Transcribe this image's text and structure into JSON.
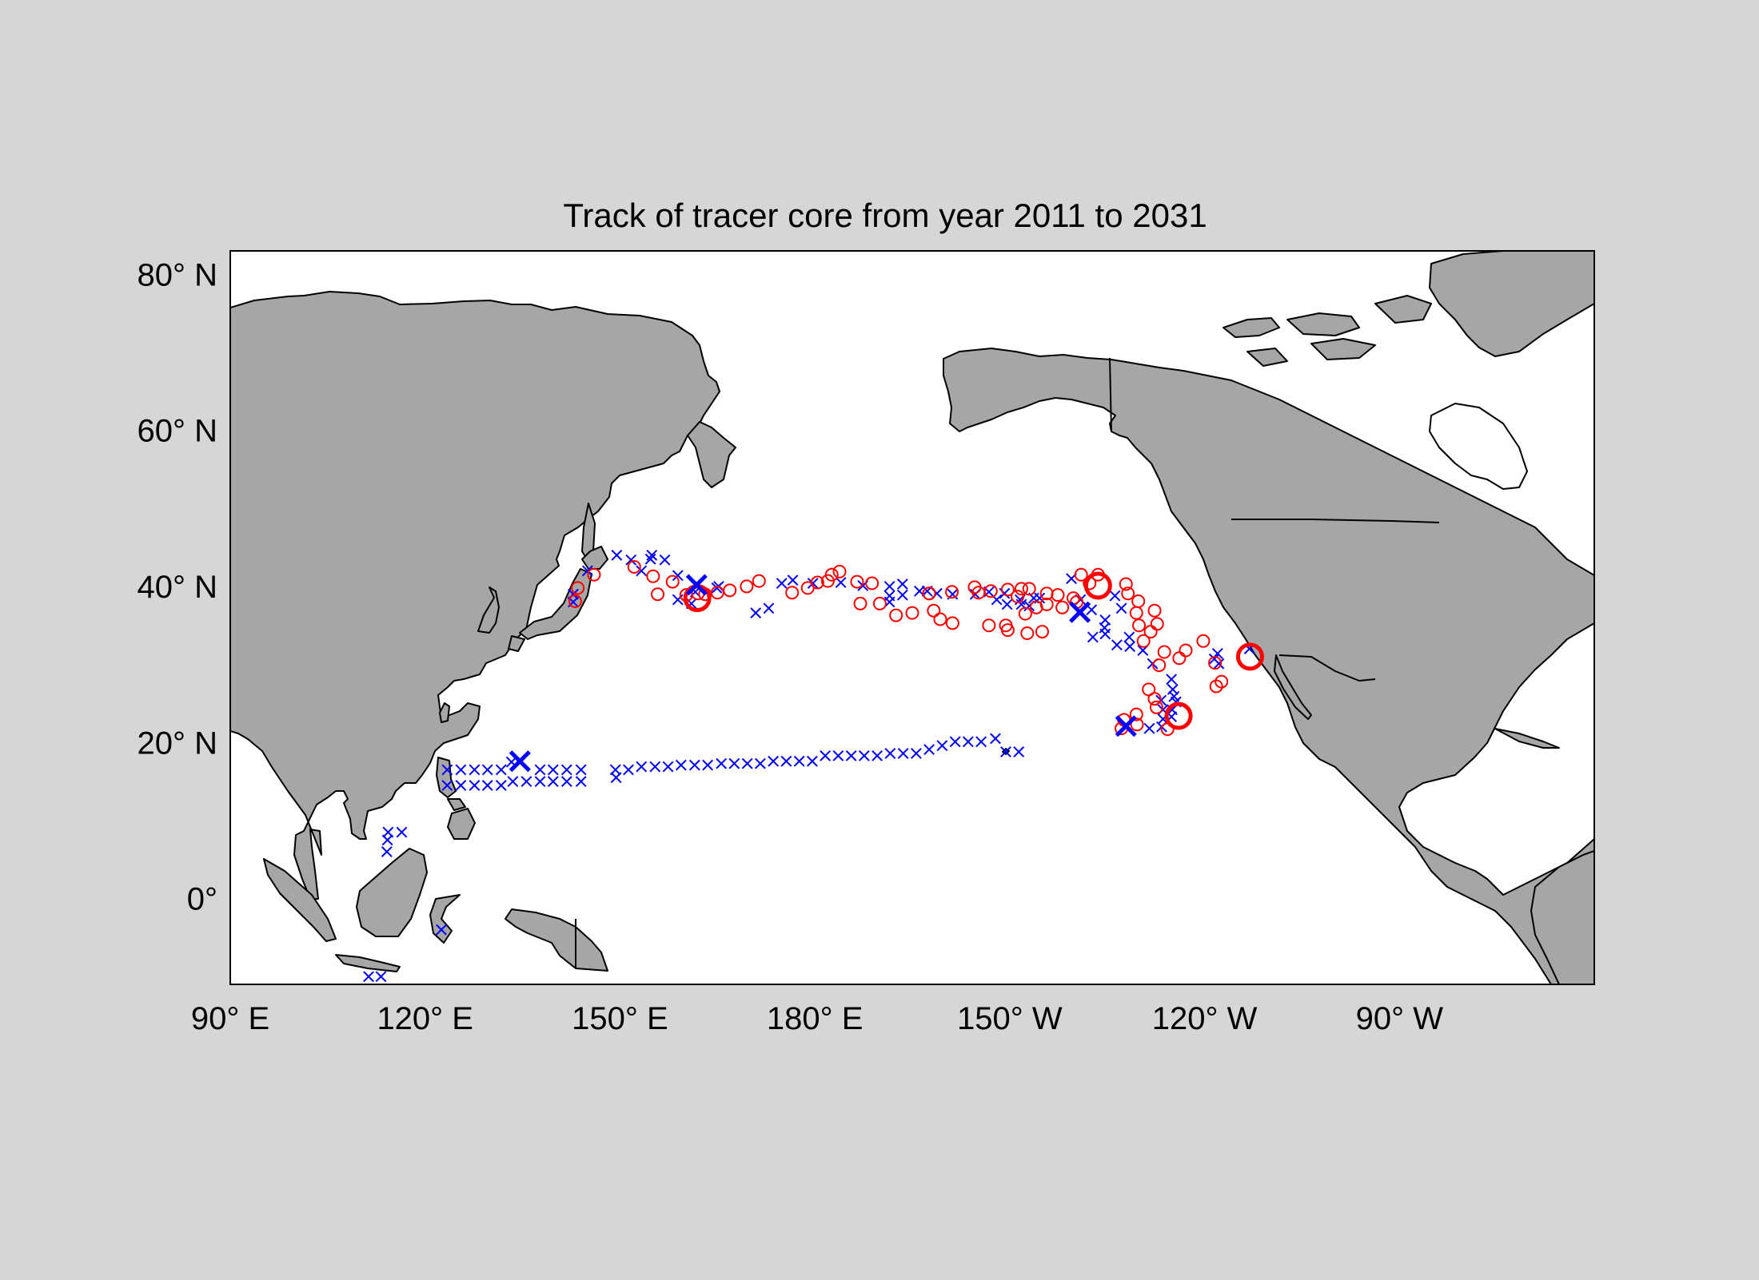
{
  "title": "Track of tracer core from  year 2011 to 2031",
  "colors": {
    "background": "#d6d6d6",
    "ocean": "#ffffff",
    "land": "#a6a6a6",
    "coast": "#000000",
    "track_a": "#0000ff",
    "track_b": "#ff0000"
  },
  "map": {
    "projection": "equirectangular",
    "lon_range": [
      90,
      300
    ],
    "lat_range": [
      -11,
      83
    ],
    "x_ticks": [
      {
        "lon": 90,
        "label": "90° E"
      },
      {
        "lon": 120,
        "label": "120° E"
      },
      {
        "lon": 150,
        "label": "150° E"
      },
      {
        "lon": 180,
        "label": "180° E"
      },
      {
        "lon": 210,
        "label": "150° W"
      },
      {
        "lon": 240,
        "label": "120° W"
      },
      {
        "lon": 270,
        "label": "90° W"
      }
    ],
    "y_ticks": [
      {
        "lat": 80,
        "label": "80° N"
      },
      {
        "lat": 60,
        "label": "60° N"
      },
      {
        "lat": 40,
        "label": "40° N"
      },
      {
        "lat": 20,
        "label": "20° N"
      },
      {
        "lat": 0,
        "label": "0°"
      }
    ]
  },
  "chart_data": {
    "type": "scatter",
    "title": "Track of tracer core from  year 2011 to 2031",
    "xlabel": "",
    "ylabel": "",
    "xlim": [
      90,
      300
    ],
    "ylim": [
      -11,
      83
    ],
    "grid": false,
    "legend": "none",
    "series": [
      {
        "marker": "x",
        "color": "#0000ff",
        "points": [
          [
            111.3,
            -10
          ],
          [
            113.2,
            -10
          ],
          [
            122.5,
            -4
          ],
          [
            114.1,
            6
          ],
          [
            114.2,
            7.5
          ],
          [
            114.3,
            8.5
          ],
          [
            116.4,
            8.5
          ],
          [
            123.4,
            16.5
          ],
          [
            125.5,
            16.5
          ],
          [
            127.6,
            16.5
          ],
          [
            129.6,
            16.5
          ],
          [
            131.7,
            16.5
          ],
          [
            133.3,
            17.5
          ],
          [
            137.7,
            16.5
          ],
          [
            139.7,
            16.5
          ],
          [
            141.8,
            16.5
          ],
          [
            144.0,
            16.5
          ],
          [
            123.4,
            14.5
          ],
          [
            125.5,
            14.5
          ],
          [
            127.6,
            14.5
          ],
          [
            129.6,
            14.5
          ],
          [
            131.7,
            14.5
          ],
          [
            133.5,
            15.0
          ],
          [
            135.6,
            15.0
          ],
          [
            137.7,
            15.0
          ],
          [
            139.7,
            15.0
          ],
          [
            141.8,
            15.0
          ],
          [
            144.0,
            15.0
          ],
          [
            149.3,
            16.5
          ],
          [
            149.4,
            15.5
          ],
          [
            151.3,
            16.5
          ],
          [
            153.3,
            16.9
          ],
          [
            155.4,
            16.9
          ],
          [
            157.4,
            16.9
          ],
          [
            159.4,
            17.1
          ],
          [
            161.5,
            17.1
          ],
          [
            163.5,
            17.1
          ],
          [
            165.6,
            17.3
          ],
          [
            167.6,
            17.3
          ],
          [
            169.6,
            17.3
          ],
          [
            171.6,
            17.3
          ],
          [
            173.6,
            17.6
          ],
          [
            175.6,
            17.6
          ],
          [
            177.6,
            17.6
          ],
          [
            179.6,
            17.6
          ],
          [
            181.6,
            18.3
          ],
          [
            183.6,
            18.3
          ],
          [
            185.6,
            18.3
          ],
          [
            187.6,
            18.3
          ],
          [
            189.6,
            18.3
          ],
          [
            191.6,
            18.6
          ],
          [
            193.6,
            18.6
          ],
          [
            195.6,
            18.6
          ],
          [
            197.6,
            19.1
          ],
          [
            199.6,
            19.6
          ],
          [
            201.6,
            20.1
          ],
          [
            203.6,
            20.1
          ],
          [
            205.6,
            20.1
          ],
          [
            207.8,
            20.5
          ],
          [
            209.4,
            18.8
          ],
          [
            211.4,
            18.8
          ],
          [
            142.8,
            39
          ],
          [
            142.8,
            38
          ],
          [
            145.0,
            42
          ],
          [
            149.5,
            44
          ],
          [
            151.7,
            43.4
          ],
          [
            154.7,
            43.5
          ],
          [
            154.9,
            44
          ],
          [
            156.9,
            43.4
          ],
          [
            158.9,
            41.4
          ],
          [
            161.6,
            39.3
          ],
          [
            153.3,
            42
          ],
          [
            158.9,
            38.3
          ],
          [
            161.0,
            37.8
          ],
          [
            164.9,
            39.8
          ],
          [
            165.2,
            40
          ],
          [
            170.9,
            36.6
          ],
          [
            172.9,
            37.2
          ],
          [
            174.9,
            40.4
          ],
          [
            176.6,
            40.8
          ],
          [
            179.7,
            40.4
          ],
          [
            184.0,
            40.5
          ],
          [
            187.4,
            40.1
          ],
          [
            191.5,
            40.0
          ],
          [
            193.5,
            40.3
          ],
          [
            191.5,
            38.8
          ],
          [
            191.5,
            38.0
          ],
          [
            193.5,
            38.9
          ],
          [
            196.1,
            39.4
          ],
          [
            197.3,
            39.4
          ],
          [
            198.8,
            39.1
          ],
          [
            201.2,
            39.0
          ],
          [
            204.7,
            39.0
          ],
          [
            206.8,
            39.3
          ],
          [
            208.0,
            38.3
          ],
          [
            209.2,
            39.1
          ],
          [
            209.6,
            37.7
          ],
          [
            211.8,
            37.7
          ],
          [
            211.6,
            38.3
          ],
          [
            213.7,
            38.5
          ],
          [
            214.6,
            38.5
          ],
          [
            213.0,
            37.5
          ],
          [
            219.5,
            41.0
          ],
          [
            220.9,
            38.3
          ],
          [
            222.6,
            37.0
          ],
          [
            224.7,
            35.7
          ],
          [
            222.8,
            33.5
          ],
          [
            224.7,
            33.9
          ],
          [
            224.6,
            34.7
          ],
          [
            226.5,
            32.5
          ],
          [
            228.4,
            33.5
          ],
          [
            228.5,
            32.3
          ],
          [
            230.5,
            31.8
          ],
          [
            232.0,
            30.1
          ],
          [
            226.2,
            38.8
          ],
          [
            227.2,
            37.2
          ],
          [
            233.3,
            25.4
          ],
          [
            233.6,
            24.2
          ],
          [
            233.6,
            23.0
          ],
          [
            234.9,
            28.1
          ],
          [
            235.1,
            26.8
          ],
          [
            235.3,
            25.9
          ],
          [
            235.6,
            25.2
          ],
          [
            235.0,
            24.2
          ],
          [
            234.9,
            23.3
          ],
          [
            233.4,
            22.0
          ],
          [
            231.5,
            21.8
          ],
          [
            246.9,
            32
          ],
          [
            241.5,
            30.7
          ],
          [
            242.0,
            31.4
          ],
          [
            242.2,
            30.1
          ]
        ]
      },
      {
        "marker": "o",
        "color": "#ff0000",
        "points": [
          [
            143.1,
            38.1
          ],
          [
            143.5,
            39.8
          ],
          [
            146.0,
            41.5
          ],
          [
            152.2,
            42.5
          ],
          [
            155.1,
            41.3
          ],
          [
            158.1,
            40.6
          ],
          [
            155.8,
            39.0
          ],
          [
            160.2,
            38.9
          ],
          [
            162.0,
            39.1
          ],
          [
            163.1,
            39.0
          ],
          [
            165.0,
            39.2
          ],
          [
            166.9,
            39.5
          ],
          [
            169.5,
            40.0
          ],
          [
            171.4,
            40.7
          ],
          [
            176.5,
            39.2
          ],
          [
            178.9,
            39.8
          ],
          [
            180.4,
            40.5
          ],
          [
            182.0,
            40.7
          ],
          [
            182.6,
            41.5
          ],
          [
            183.8,
            41.9
          ],
          [
            186.5,
            40.6
          ],
          [
            188.8,
            40.4
          ],
          [
            187.0,
            37.8
          ],
          [
            190.0,
            37.8
          ],
          [
            192.5,
            36.3
          ],
          [
            195.0,
            36.6
          ],
          [
            197.6,
            39.1
          ],
          [
            197.6,
            39.1
          ],
          [
            201.1,
            39.3
          ],
          [
            198.3,
            36.9
          ],
          [
            199.3,
            35.8
          ],
          [
            201.2,
            35.3
          ],
          [
            205.2,
            39.2
          ],
          [
            204.6,
            39.9
          ],
          [
            207.1,
            39.4
          ],
          [
            209.7,
            39.6
          ],
          [
            211.8,
            39.7
          ],
          [
            213.0,
            39.7
          ],
          [
            211.2,
            38.7
          ],
          [
            212.4,
            36.5
          ],
          [
            214.1,
            37.3
          ],
          [
            206.8,
            35.0
          ],
          [
            209.4,
            35.0
          ],
          [
            209.7,
            34.4
          ],
          [
            212.7,
            34.0
          ],
          [
            215.0,
            34.2
          ],
          [
            215.7,
            39.1
          ],
          [
            215.7,
            37.7
          ],
          [
            217.4,
            38.9
          ],
          [
            220.3,
            38.0
          ],
          [
            218.1,
            37.3
          ],
          [
            219.8,
            38.5
          ],
          [
            221.0,
            41.5
          ],
          [
            222.3,
            40.4
          ],
          [
            223.6,
            41.5
          ],
          [
            227.9,
            40.3
          ],
          [
            228.2,
            39.1
          ],
          [
            229.8,
            38.1
          ],
          [
            229.5,
            36.6
          ],
          [
            232.3,
            36.9
          ],
          [
            232.7,
            35.2
          ],
          [
            229.9,
            35.0
          ],
          [
            230.6,
            33.0
          ],
          [
            231.7,
            34.2
          ],
          [
            233.8,
            31.6
          ],
          [
            233.0,
            29.9
          ],
          [
            231.4,
            26.8
          ],
          [
            232.3,
            25.6
          ],
          [
            232.6,
            24.5
          ],
          [
            229.5,
            23.6
          ],
          [
            227.6,
            22.9
          ],
          [
            227.2,
            21.8
          ],
          [
            229.6,
            22.3
          ],
          [
            234.3,
            21.7
          ],
          [
            236.1,
            30.8
          ],
          [
            237.1,
            31.8
          ],
          [
            239.8,
            33.0
          ],
          [
            241.6,
            30.2
          ],
          [
            241.8,
            27.2
          ],
          [
            242.6,
            27.8
          ]
        ]
      }
    ],
    "highlights": {
      "x": [
        [
          161.8,
          40.2
        ],
        [
          220.8,
          36.7
        ],
        [
          227.9,
          22.1
        ],
        [
          134.6,
          17.6
        ]
      ],
      "o": [
        [
          161.9,
          38.5
        ],
        [
          223.6,
          40.1
        ],
        [
          236.0,
          23.4
        ],
        [
          247.0,
          31.0
        ]
      ]
    }
  }
}
